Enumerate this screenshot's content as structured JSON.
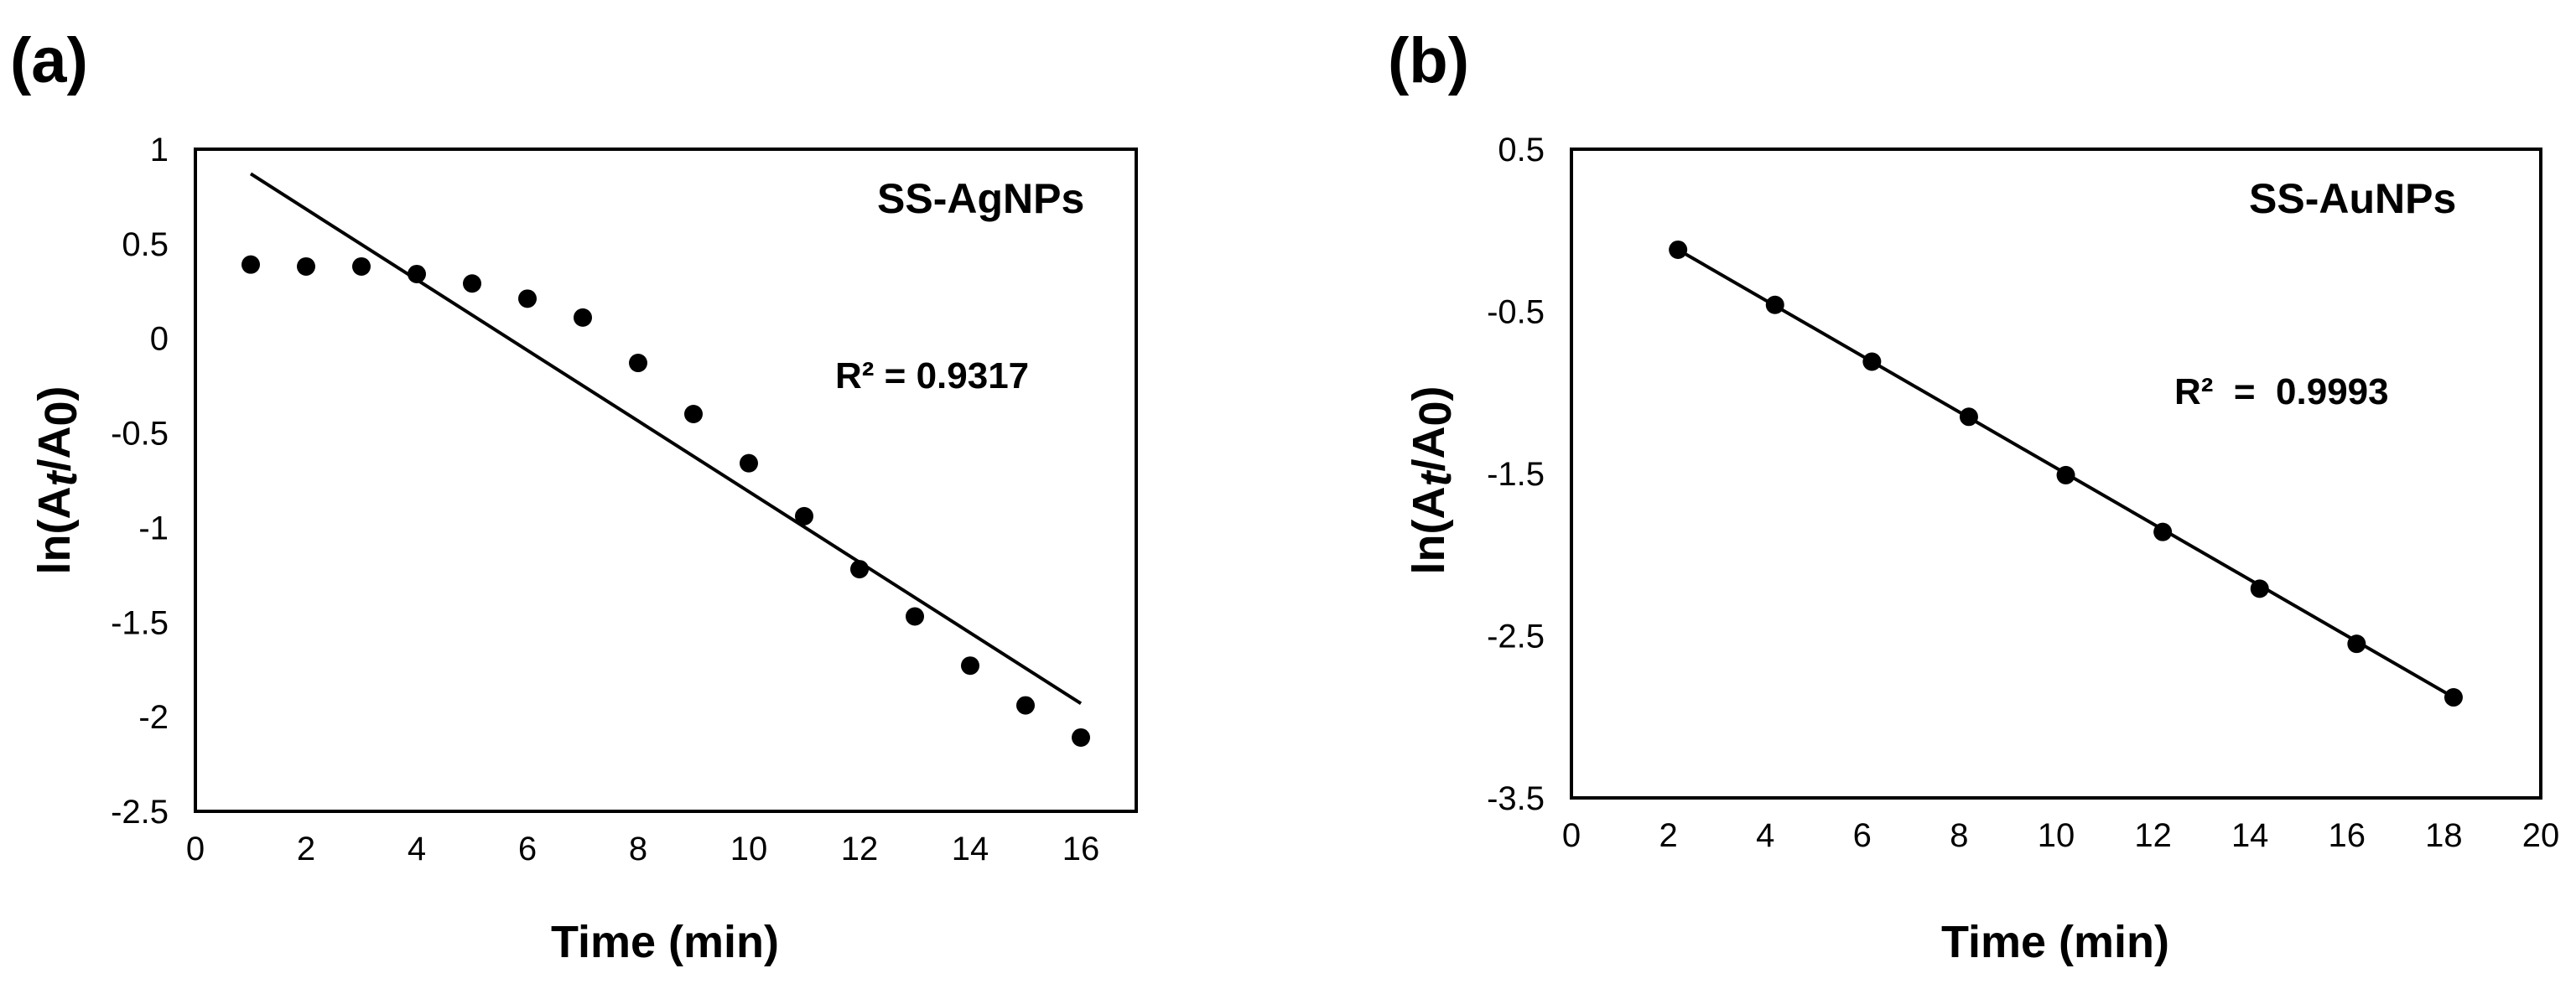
{
  "chart_data": [
    {
      "type": "scatter",
      "panel_label": "(a)",
      "series_label": "SS-AgNPs",
      "r_squared": "R² = 0.9317",
      "xlabel": "Time (min)",
      "ylabel_parts": [
        "ln(A",
        "t",
        "/A",
        "0",
        ")"
      ],
      "xlim": [
        0,
        17
      ],
      "ylim": [
        -2.5,
        1
      ],
      "x_ticks": [
        "0",
        "2",
        "4",
        "6",
        "8",
        "10",
        "12",
        "14",
        "16"
      ],
      "y_ticks": [
        "1",
        "0.5",
        "0",
        "-0.5",
        "-1",
        "-1.5",
        "-2",
        "-2.5"
      ],
      "x": [
        1,
        2,
        3,
        4,
        5,
        6,
        7,
        8,
        9,
        10,
        11,
        12,
        13,
        14,
        15,
        16
      ],
      "y": [
        0.39,
        0.38,
        0.38,
        0.34,
        0.29,
        0.21,
        0.11,
        -0.13,
        -0.4,
        -0.66,
        -0.94,
        -1.22,
        -1.47,
        -1.73,
        -1.94,
        -2.11
      ],
      "fit": {
        "x": [
          1,
          16
        ],
        "y": [
          0.87,
          -1.93
        ]
      }
    },
    {
      "type": "scatter",
      "panel_label": "(b)",
      "series_label": "SS-AuNPs",
      "r_squared": "R²  =  0.9993",
      "xlabel": "Time (min)",
      "ylabel_parts": [
        "ln(A",
        "t",
        "/A",
        "0",
        ")"
      ],
      "xlim": [
        0,
        20
      ],
      "ylim": [
        -3.5,
        0.5
      ],
      "x_ticks": [
        "0",
        "2",
        "4",
        "6",
        "8",
        "10",
        "12",
        "14",
        "16",
        "18",
        "20"
      ],
      "y_ticks": [
        "0.5",
        "-0.5",
        "-1.5",
        "-2.5",
        "-3.5"
      ],
      "x": [
        2.2,
        4.2,
        6.2,
        8.2,
        10.2,
        12.2,
        14.2,
        16.2,
        18.2
      ],
      "y": [
        -0.12,
        -0.46,
        -0.81,
        -1.15,
        -1.51,
        -1.86,
        -2.21,
        -2.55,
        -2.88
      ],
      "fit": {
        "x": [
          2.2,
          18.2
        ],
        "y": [
          -0.12,
          -2.88
        ]
      }
    }
  ]
}
